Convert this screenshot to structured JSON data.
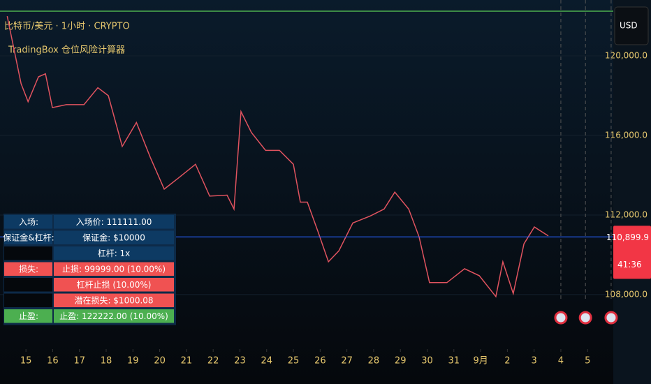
{
  "header": {
    "symbol_line": "比特币/美元 · 1小时 · CRYPTO",
    "indicator_line": "TradingBox 仓位风险计算器",
    "currency_button": "USD"
  },
  "chart_data": {
    "type": "line",
    "color": "#e0535f",
    "x": [
      -0.7,
      -0.18,
      0.08,
      0.47,
      0.73,
      0.99,
      1.51,
      2.17,
      2.69,
      3.08,
      3.6,
      4.13,
      4.65,
      5.17,
      5.69,
      6.34,
      6.87,
      7.52,
      7.78,
      8.04,
      8.43,
      8.96,
      9.48,
      10.0,
      10.26,
      10.52,
      10.91,
      11.31,
      11.7,
      12.22,
      12.87,
      13.39,
      13.79,
      14.31,
      14.7,
      15.09,
      15.74,
      16.4,
      16.95,
      17.57,
      17.83,
      18.22,
      18.62,
      19.01,
      19.53
    ],
    "values": [
      122000,
      118600,
      117700,
      118950,
      119100,
      117400,
      117550,
      117550,
      118400,
      118000,
      115450,
      116650,
      114900,
      113300,
      113850,
      114550,
      112950,
      113000,
      112300,
      117200,
      116150,
      115250,
      115250,
      114550,
      112650,
      112650,
      111200,
      109650,
      110200,
      111600,
      111950,
      112300,
      113150,
      112300,
      110900,
      108600,
      108600,
      109300,
      108950,
      107900,
      109650,
      108050,
      110550,
      111400,
      110950
    ],
    "xlim": [
      -0.97,
      21.96
    ],
    "ylim": [
      105260,
      122810
    ],
    "xticks": [
      {
        "value": 0,
        "label": "15"
      },
      {
        "value": 1,
        "label": "16"
      },
      {
        "value": 2,
        "label": "17"
      },
      {
        "value": 3,
        "label": "18"
      },
      {
        "value": 4,
        "label": "19"
      },
      {
        "value": 5,
        "label": "20"
      },
      {
        "value": 6,
        "label": "21"
      },
      {
        "value": 7,
        "label": "22"
      },
      {
        "value": 8,
        "label": "23"
      },
      {
        "value": 9,
        "label": "24"
      },
      {
        "value": 10,
        "label": "25"
      },
      {
        "value": 11,
        "label": "26"
      },
      {
        "value": 12,
        "label": "27"
      },
      {
        "value": 13,
        "label": "28"
      },
      {
        "value": 14,
        "label": "29"
      },
      {
        "value": 15,
        "label": "30"
      },
      {
        "value": 16,
        "label": "31"
      },
      {
        "value": 17,
        "label": "9月"
      },
      {
        "value": 18,
        "label": "2"
      },
      {
        "value": 19,
        "label": "3"
      },
      {
        "value": 20,
        "label": "4"
      },
      {
        "value": 21,
        "label": "5"
      }
    ],
    "yticks": [
      {
        "value": 108000,
        "label": "108,000.0"
      },
      {
        "value": 112000,
        "label": "112,000.0"
      },
      {
        "value": 116000,
        "label": "116,000.0"
      },
      {
        "value": 120000,
        "label": "120,000.0"
      }
    ],
    "last_price": {
      "value": 110899.9,
      "label": "110,899.9",
      "color": "#2962ff"
    },
    "countdown": "41:36",
    "alert_level": {
      "value": 122250,
      "color": "#4caf50"
    },
    "event_x": [
      20,
      20.92,
      21.88
    ]
  },
  "table": {
    "rows": [
      {
        "label": "入场:",
        "text": "入场价: 111111.00",
        "color": "#0d3a63"
      },
      {
        "label": "保证金&杠杆:",
        "text": "保证金: $10000",
        "color": "#0d3a63"
      },
      {
        "text": "杠杆: 1x",
        "color": "#0d3a63"
      },
      {
        "label": "损失:",
        "text": "止损: 99999.00 (10.00%)",
        "color": "#f05252"
      },
      {
        "text": "杠杆止损 (10.00%)",
        "color": "#f05252"
      },
      {
        "text": "潜在损失: $1000.08",
        "color": "#f05252"
      },
      {
        "label": "止盈:",
        "text": "止盈: 122222.00 (10.00%)",
        "color": "#4caf50"
      }
    ]
  }
}
